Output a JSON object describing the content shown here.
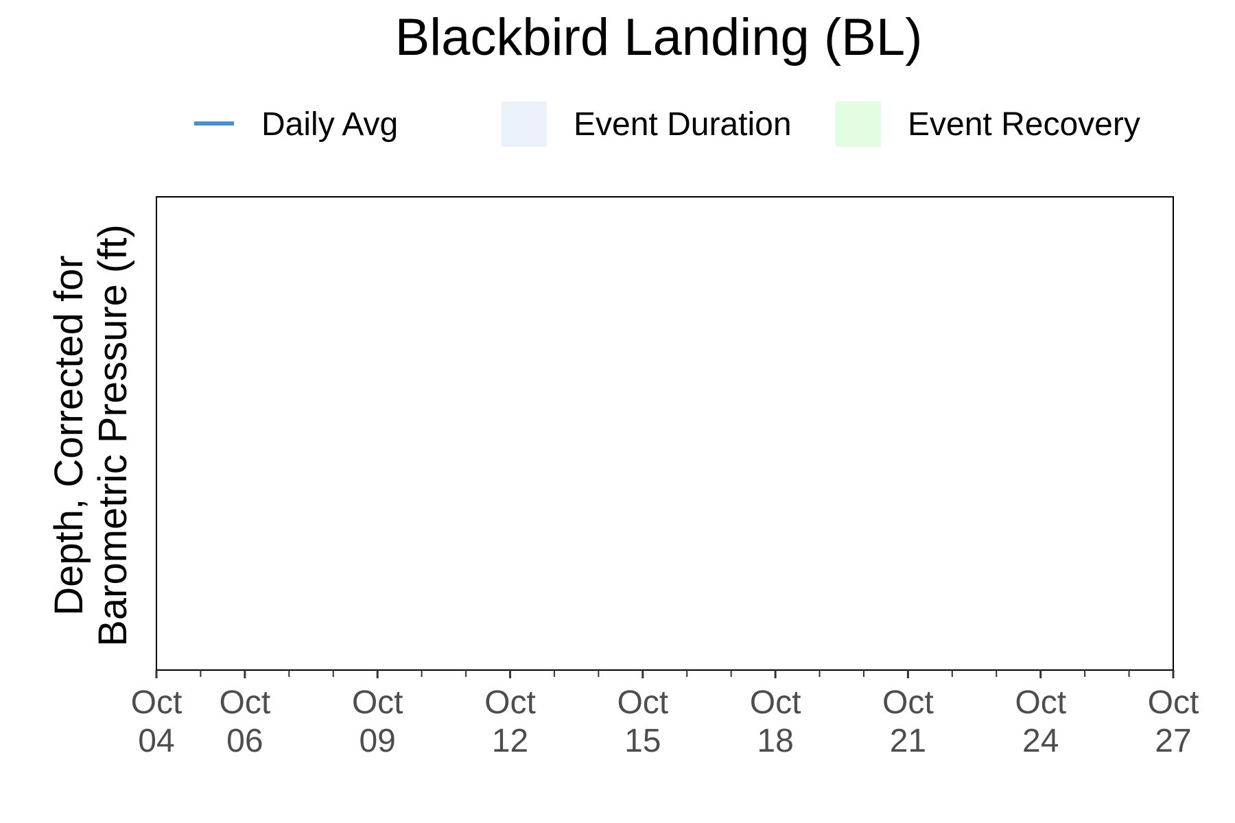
{
  "chart_data": {
    "type": "line",
    "title": "Blackbird Landing (BL)",
    "ylabel": "Depth, Corrected for Barometric Pressure (ft)",
    "ylabel_lines": [
      "Depth, Corrected for",
      "Barometric Pressure (ft)"
    ],
    "xlabel": "",
    "x_range": [
      "Oct 04",
      "Oct 27"
    ],
    "x_tick_days": [
      4,
      6,
      9,
      12,
      15,
      18,
      21,
      24,
      27
    ],
    "x_minor_tick_days": [
      4,
      5,
      6,
      7,
      8,
      9,
      10,
      11,
      12,
      13,
      14,
      15,
      16,
      17,
      18,
      19,
      20,
      21,
      22,
      23,
      24,
      25,
      26,
      27
    ],
    "x_tick_labels": [
      {
        "month": "Oct",
        "day": "04"
      },
      {
        "month": "Oct",
        "day": "06"
      },
      {
        "month": "Oct",
        "day": "09"
      },
      {
        "month": "Oct",
        "day": "12"
      },
      {
        "month": "Oct",
        "day": "15"
      },
      {
        "month": "Oct",
        "day": "18"
      },
      {
        "month": "Oct",
        "day": "21"
      },
      {
        "month": "Oct",
        "day": "24"
      },
      {
        "month": "Oct",
        "day": "27"
      }
    ],
    "series": [
      {
        "name": "Daily Avg",
        "values": []
      }
    ],
    "legend": {
      "placement": "top",
      "items": [
        {
          "label": "Daily Avg",
          "kind": "line",
          "color": "#4a8fcf"
        },
        {
          "label": "Event Duration",
          "kind": "fill",
          "color": "#eaf1fb"
        },
        {
          "label": "Event Recovery",
          "kind": "fill",
          "color": "#e3fde3"
        }
      ]
    },
    "grid": false
  }
}
